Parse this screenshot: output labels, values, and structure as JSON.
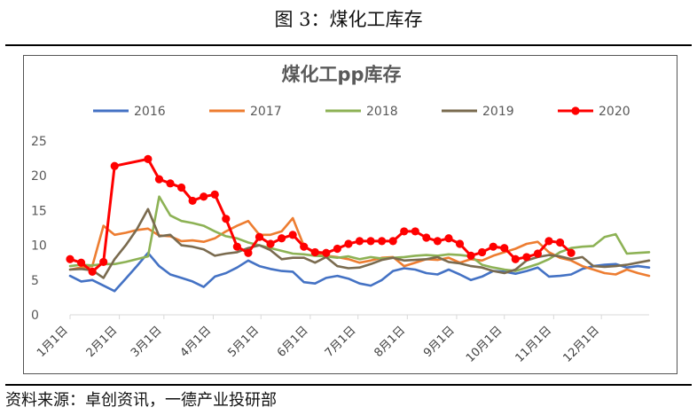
{
  "figure": {
    "caption": "图 3：煤化工库存",
    "source": "资料来源：卓创资讯，一德产业投研部"
  },
  "colors": {
    "2016": "#4472C4",
    "2017": "#ED7D31",
    "2018": "#8DB255",
    "2019": "#7A6B4F",
    "2020": "#FF0000"
  },
  "chart_data": {
    "type": "line",
    "title": "煤化工pp库存",
    "xlabel": "",
    "ylabel": "",
    "ylim": [
      0,
      25
    ],
    "yticks": [
      0,
      5,
      10,
      15,
      20,
      25
    ],
    "xlim": [
      1,
      365
    ],
    "xticks": [
      {
        "label": "1月1日",
        "day": 1
      },
      {
        "label": "2月1日",
        "day": 32
      },
      {
        "label": "3月1日",
        "day": 60
      },
      {
        "label": "4月1日",
        "day": 91
      },
      {
        "label": "5月1日",
        "day": 121
      },
      {
        "label": "6月1日",
        "day": 152
      },
      {
        "label": "7月1日",
        "day": 182
      },
      {
        "label": "8月1日",
        "day": 213
      },
      {
        "label": "9月1日",
        "day": 244
      },
      {
        "label": "10月1日",
        "day": 274
      },
      {
        "label": "11月1日",
        "day": 305
      },
      {
        "label": "12月1日",
        "day": 335
      }
    ],
    "legend_position": "top",
    "grid": false,
    "series": [
      {
        "name": "2016",
        "color": "#4472C4",
        "markers": false,
        "points": [
          [
            1,
            5.6
          ],
          [
            8,
            4.8
          ],
          [
            15,
            5.0
          ],
          [
            22,
            4.2
          ],
          [
            29,
            3.4
          ],
          [
            36,
            5.2
          ],
          [
            43,
            7.0
          ],
          [
            50,
            8.9
          ],
          [
            57,
            7.0
          ],
          [
            64,
            5.8
          ],
          [
            71,
            5.3
          ],
          [
            78,
            4.8
          ],
          [
            85,
            4.0
          ],
          [
            92,
            5.5
          ],
          [
            99,
            6.0
          ],
          [
            106,
            6.8
          ],
          [
            113,
            7.8
          ],
          [
            120,
            7.0
          ],
          [
            127,
            6.6
          ],
          [
            134,
            6.3
          ],
          [
            141,
            6.2
          ],
          [
            148,
            4.7
          ],
          [
            155,
            4.5
          ],
          [
            162,
            5.3
          ],
          [
            169,
            5.6
          ],
          [
            176,
            5.2
          ],
          [
            183,
            4.5
          ],
          [
            190,
            4.2
          ],
          [
            197,
            5.0
          ],
          [
            204,
            6.3
          ],
          [
            211,
            6.7
          ],
          [
            218,
            6.5
          ],
          [
            225,
            6.0
          ],
          [
            232,
            5.8
          ],
          [
            239,
            6.5
          ],
          [
            246,
            5.8
          ],
          [
            253,
            5.0
          ],
          [
            260,
            5.5
          ],
          [
            267,
            6.3
          ],
          [
            274,
            6.2
          ],
          [
            281,
            5.9
          ],
          [
            288,
            6.3
          ],
          [
            295,
            6.8
          ],
          [
            302,
            5.5
          ],
          [
            309,
            5.6
          ],
          [
            316,
            5.8
          ],
          [
            323,
            6.6
          ],
          [
            330,
            7.0
          ],
          [
            337,
            7.2
          ],
          [
            344,
            7.3
          ],
          [
            351,
            6.8
          ],
          [
            358,
            7.0
          ],
          [
            365,
            6.8
          ]
        ]
      },
      {
        "name": "2017",
        "color": "#ED7D31",
        "markers": false,
        "points": [
          [
            1,
            6.5
          ],
          [
            8,
            6.8
          ],
          [
            15,
            7.0
          ],
          [
            22,
            12.8
          ],
          [
            29,
            11.5
          ],
          [
            36,
            11.8
          ],
          [
            43,
            12.2
          ],
          [
            50,
            12.4
          ],
          [
            57,
            11.4
          ],
          [
            64,
            11.3
          ],
          [
            71,
            10.6
          ],
          [
            78,
            10.7
          ],
          [
            85,
            10.5
          ],
          [
            92,
            11.0
          ],
          [
            99,
            12.0
          ],
          [
            106,
            12.8
          ],
          [
            113,
            13.5
          ],
          [
            120,
            11.5
          ],
          [
            127,
            11.5
          ],
          [
            134,
            12.0
          ],
          [
            141,
            13.9
          ],
          [
            148,
            9.9
          ],
          [
            155,
            8.8
          ],
          [
            162,
            8.5
          ],
          [
            169,
            8.3
          ],
          [
            176,
            8.0
          ],
          [
            183,
            7.5
          ],
          [
            190,
            7.8
          ],
          [
            197,
            8.2
          ],
          [
            204,
            8.3
          ],
          [
            211,
            7.0
          ],
          [
            218,
            7.5
          ],
          [
            225,
            8.0
          ],
          [
            232,
            7.9
          ],
          [
            239,
            8.2
          ],
          [
            246,
            7.5
          ],
          [
            253,
            8.0
          ],
          [
            260,
            7.8
          ],
          [
            267,
            8.5
          ],
          [
            274,
            9.0
          ],
          [
            281,
            9.5
          ],
          [
            288,
            10.2
          ],
          [
            295,
            10.5
          ],
          [
            302,
            9.0
          ],
          [
            309,
            8.2
          ],
          [
            316,
            7.8
          ],
          [
            323,
            7.0
          ],
          [
            330,
            6.5
          ],
          [
            337,
            6.0
          ],
          [
            344,
            5.8
          ],
          [
            351,
            6.5
          ],
          [
            358,
            6.0
          ],
          [
            365,
            5.6
          ]
        ]
      },
      {
        "name": "2018",
        "color": "#8DB255",
        "markers": false,
        "points": [
          [
            1,
            7.0
          ],
          [
            8,
            7.2
          ],
          [
            15,
            7.1
          ],
          [
            22,
            7.3
          ],
          [
            29,
            7.3
          ],
          [
            36,
            7.6
          ],
          [
            43,
            8.0
          ],
          [
            50,
            8.4
          ],
          [
            57,
            17.0
          ],
          [
            64,
            14.3
          ],
          [
            71,
            13.5
          ],
          [
            78,
            13.2
          ],
          [
            85,
            12.8
          ],
          [
            92,
            12.0
          ],
          [
            99,
            11.3
          ],
          [
            106,
            11.0
          ],
          [
            113,
            10.4
          ],
          [
            120,
            10.0
          ],
          [
            127,
            9.6
          ],
          [
            134,
            9.2
          ],
          [
            141,
            8.8
          ],
          [
            148,
            8.7
          ],
          [
            155,
            8.5
          ],
          [
            162,
            8.4
          ],
          [
            169,
            8.2
          ],
          [
            176,
            8.4
          ],
          [
            183,
            8.0
          ],
          [
            190,
            8.3
          ],
          [
            197,
            8.1
          ],
          [
            204,
            8.2
          ],
          [
            211,
            8.3
          ],
          [
            218,
            8.5
          ],
          [
            225,
            8.6
          ],
          [
            232,
            8.5
          ],
          [
            239,
            8.7
          ],
          [
            246,
            8.6
          ],
          [
            253,
            8.4
          ],
          [
            260,
            7.2
          ],
          [
            267,
            6.8
          ],
          [
            274,
            6.5
          ],
          [
            281,
            6.3
          ],
          [
            288,
            6.8
          ],
          [
            295,
            7.3
          ],
          [
            302,
            8.0
          ],
          [
            309,
            9.0
          ],
          [
            316,
            9.6
          ],
          [
            323,
            9.8
          ],
          [
            330,
            9.9
          ],
          [
            337,
            11.2
          ],
          [
            344,
            11.6
          ],
          [
            351,
            8.8
          ],
          [
            358,
            8.9
          ],
          [
            365,
            9.0
          ]
        ]
      },
      {
        "name": "2019",
        "color": "#7A6B4F",
        "markers": false,
        "points": [
          [
            1,
            6.5
          ],
          [
            8,
            6.6
          ],
          [
            15,
            6.4
          ],
          [
            22,
            5.3
          ],
          [
            29,
            8.0
          ],
          [
            36,
            10.0
          ],
          [
            43,
            12.3
          ],
          [
            50,
            15.2
          ],
          [
            57,
            11.3
          ],
          [
            64,
            11.5
          ],
          [
            71,
            10.0
          ],
          [
            78,
            9.8
          ],
          [
            85,
            9.4
          ],
          [
            92,
            8.5
          ],
          [
            99,
            8.8
          ],
          [
            106,
            9.0
          ],
          [
            113,
            9.6
          ],
          [
            120,
            10.0
          ],
          [
            127,
            9.3
          ],
          [
            134,
            8.0
          ],
          [
            141,
            8.2
          ],
          [
            148,
            8.2
          ],
          [
            155,
            7.5
          ],
          [
            162,
            8.3
          ],
          [
            169,
            7.0
          ],
          [
            176,
            6.7
          ],
          [
            183,
            6.8
          ],
          [
            190,
            7.3
          ],
          [
            197,
            7.9
          ],
          [
            204,
            8.2
          ],
          [
            211,
            7.8
          ],
          [
            218,
            7.9
          ],
          [
            225,
            8.0
          ],
          [
            232,
            8.3
          ],
          [
            239,
            7.6
          ],
          [
            246,
            7.4
          ],
          [
            253,
            7.0
          ],
          [
            260,
            6.8
          ],
          [
            267,
            6.3
          ],
          [
            274,
            6.0
          ],
          [
            281,
            6.5
          ],
          [
            288,
            7.8
          ],
          [
            295,
            8.3
          ],
          [
            302,
            8.6
          ],
          [
            309,
            8.4
          ],
          [
            316,
            8.0
          ],
          [
            323,
            8.3
          ],
          [
            330,
            7.0
          ],
          [
            337,
            6.9
          ],
          [
            344,
            7.0
          ],
          [
            351,
            7.2
          ],
          [
            358,
            7.5
          ],
          [
            365,
            7.8
          ]
        ]
      },
      {
        "name": "2020",
        "color": "#FF0000",
        "markers": true,
        "points": [
          [
            1,
            8.0
          ],
          [
            8,
            7.5
          ],
          [
            15,
            6.2
          ],
          [
            22,
            7.6
          ],
          [
            29,
            21.4
          ],
          [
            50,
            22.4
          ],
          [
            57,
            19.5
          ],
          [
            64,
            18.9
          ],
          [
            71,
            18.3
          ],
          [
            78,
            16.4
          ],
          [
            85,
            17.0
          ],
          [
            92,
            17.3
          ],
          [
            99,
            13.8
          ],
          [
            106,
            9.8
          ],
          [
            113,
            8.9
          ],
          [
            120,
            11.2
          ],
          [
            127,
            10.2
          ],
          [
            134,
            11.0
          ],
          [
            141,
            11.5
          ],
          [
            148,
            9.8
          ],
          [
            155,
            9.0
          ],
          [
            162,
            8.9
          ],
          [
            169,
            9.5
          ],
          [
            176,
            10.2
          ],
          [
            183,
            10.6
          ],
          [
            190,
            10.6
          ],
          [
            197,
            10.6
          ],
          [
            204,
            10.6
          ],
          [
            211,
            12.0
          ],
          [
            218,
            12.0
          ],
          [
            225,
            11.1
          ],
          [
            232,
            10.6
          ],
          [
            239,
            11.0
          ],
          [
            246,
            10.2
          ],
          [
            253,
            8.5
          ],
          [
            260,
            9.0
          ],
          [
            267,
            9.8
          ],
          [
            274,
            9.6
          ],
          [
            281,
            8.0
          ],
          [
            288,
            8.3
          ],
          [
            295,
            8.8
          ],
          [
            302,
            10.6
          ],
          [
            309,
            10.4
          ],
          [
            316,
            8.9
          ]
        ]
      }
    ]
  }
}
